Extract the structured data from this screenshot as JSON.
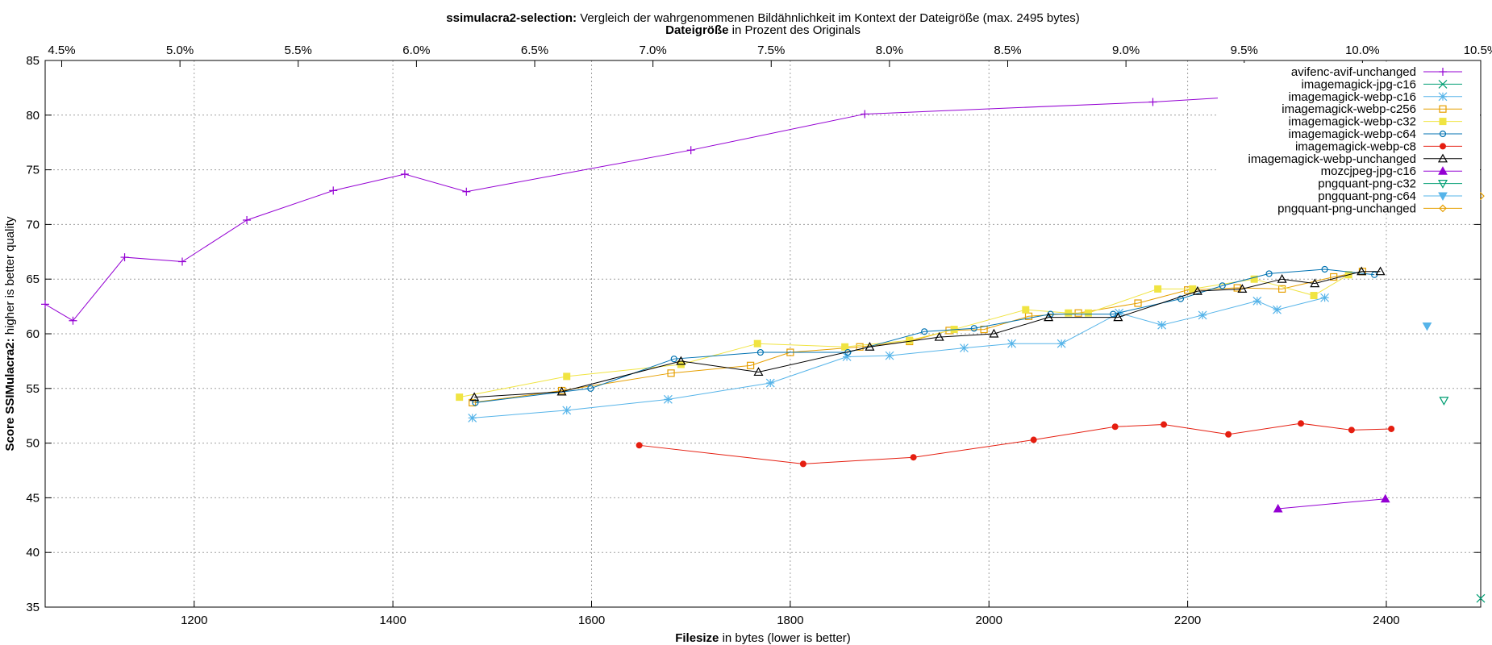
{
  "chart_data": {
    "type": "line",
    "title": {
      "bold": "ssimulacra2-selection:",
      "rest": " Vergleich der wahrgenommenen Bildähnlichkeit im Kontext der Dateigröße (max. 2495 bytes)"
    },
    "x2label": {
      "bold": "Dateigröße",
      "rest": " in Prozent des Originals"
    },
    "xlabel": {
      "bold": "Filesize",
      "rest": " in bytes (lower is better)"
    },
    "ylabel": {
      "bold": "Score SSIMulacra2:",
      "rest": " higher is better quality"
    },
    "xlim": [
      1050,
      2495
    ],
    "ylim": [
      35,
      85
    ],
    "x_ticks": [
      1200,
      1400,
      1600,
      1800,
      2000,
      2200,
      2400
    ],
    "y_ticks": [
      35,
      40,
      45,
      50,
      55,
      60,
      65,
      70,
      75,
      80,
      85
    ],
    "x2_ticks": [
      "4.5%",
      "5.0%",
      "5.5%",
      "6.0%",
      "6.5%",
      "7.0%",
      "7.5%",
      "8.0%",
      "8.5%",
      "9.0%",
      "9.5%",
      "10.0%",
      "10.5%"
    ],
    "x2_range": [
      4.43,
      10.5
    ],
    "grid": true,
    "legend_position": "top-right",
    "series": [
      {
        "name": "avifenc-avif-unchanged",
        "color": "#9400d3",
        "marker": "plus",
        "points": [
          [
            1050,
            62.7
          ],
          [
            1078,
            61.2
          ],
          [
            1130,
            67.0
          ],
          [
            1188,
            66.6
          ],
          [
            1253,
            70.4
          ],
          [
            1340,
            73.1
          ],
          [
            1412,
            74.6
          ],
          [
            1474,
            73.0
          ],
          [
            1700,
            76.8
          ],
          [
            1875,
            80.1
          ],
          [
            2165,
            81.2
          ],
          [
            2400,
            82.5
          ]
        ]
      },
      {
        "name": "imagemagick-jpg-c16",
        "color": "#009e73",
        "marker": "cross",
        "points": [
          [
            2495,
            35.8
          ]
        ]
      },
      {
        "name": "imagemagick-webp-c16",
        "color": "#56b4e9",
        "marker": "asterisk",
        "points": [
          [
            1480,
            52.3
          ],
          [
            1575,
            53.0
          ],
          [
            1677,
            54.0
          ],
          [
            1780,
            55.5
          ],
          [
            1857,
            57.9
          ],
          [
            1900,
            58.0
          ],
          [
            1975,
            58.7
          ],
          [
            2023,
            59.1
          ],
          [
            2073,
            59.1
          ],
          [
            2131,
            61.9
          ],
          [
            2174,
            60.8
          ],
          [
            2215,
            61.7
          ],
          [
            2270,
            63.0
          ],
          [
            2290,
            62.2
          ],
          [
            2338,
            63.3
          ]
        ]
      },
      {
        "name": "imagemagick-webp-c256",
        "color": "#e69f00",
        "marker": "square-open",
        "points": [
          [
            1480,
            53.7
          ],
          [
            1570,
            54.8
          ],
          [
            1680,
            56.4
          ],
          [
            1760,
            57.1
          ],
          [
            1800,
            58.3
          ],
          [
            1870,
            58.8
          ],
          [
            1920,
            59.3
          ],
          [
            1960,
            60.3
          ],
          [
            1995,
            60.4
          ],
          [
            2040,
            61.6
          ],
          [
            2090,
            61.9
          ],
          [
            2150,
            62.8
          ],
          [
            2200,
            64.0
          ],
          [
            2250,
            64.2
          ],
          [
            2295,
            64.1
          ],
          [
            2347,
            65.2
          ],
          [
            2376,
            65.7
          ]
        ]
      },
      {
        "name": "imagemagick-webp-c32",
        "color": "#f0e442",
        "marker": "square-filled",
        "points": [
          [
            1467,
            54.2
          ],
          [
            1575,
            56.1
          ],
          [
            1690,
            57.2
          ],
          [
            1767,
            59.1
          ],
          [
            1855,
            58.8
          ],
          [
            1920,
            59.4
          ],
          [
            1965,
            60.4
          ],
          [
            2037,
            62.2
          ],
          [
            2080,
            61.9
          ],
          [
            2100,
            61.9
          ],
          [
            2170,
            64.1
          ],
          [
            2205,
            64.1
          ],
          [
            2267,
            65.0
          ],
          [
            2327,
            63.5
          ],
          [
            2362,
            65.4
          ]
        ]
      },
      {
        "name": "imagemagick-webp-c64",
        "color": "#0072b2",
        "marker": "circle-open",
        "points": [
          [
            1483,
            53.7
          ],
          [
            1599,
            55.0
          ],
          [
            1683,
            57.7
          ],
          [
            1770,
            58.3
          ],
          [
            1858,
            58.3
          ],
          [
            1935,
            60.2
          ],
          [
            1985,
            60.5
          ],
          [
            2062,
            61.8
          ],
          [
            2125,
            61.8
          ],
          [
            2193,
            63.2
          ],
          [
            2235,
            64.4
          ],
          [
            2282,
            65.5
          ],
          [
            2338,
            65.9
          ],
          [
            2388,
            65.4
          ]
        ]
      },
      {
        "name": "imagemagick-webp-c8",
        "color": "#e51e10",
        "marker": "circle-filled",
        "points": [
          [
            1648,
            49.8
          ],
          [
            1813,
            48.1
          ],
          [
            1924,
            48.7
          ],
          [
            2045,
            50.3
          ],
          [
            2127,
            51.5
          ],
          [
            2176,
            51.7
          ],
          [
            2241,
            50.8
          ],
          [
            2314,
            51.8
          ],
          [
            2365,
            51.2
          ],
          [
            2405,
            51.3
          ]
        ]
      },
      {
        "name": "imagemagick-webp-unchanged",
        "color": "#000000",
        "marker": "triangle-open",
        "points": [
          [
            1482,
            54.2
          ],
          [
            1570,
            54.7
          ],
          [
            1690,
            57.5
          ],
          [
            1768,
            56.5
          ],
          [
            1880,
            58.8
          ],
          [
            1950,
            59.7
          ],
          [
            2005,
            60.0
          ],
          [
            2060,
            61.5
          ],
          [
            2130,
            61.5
          ],
          [
            2210,
            63.9
          ],
          [
            2255,
            64.1
          ],
          [
            2295,
            65.0
          ],
          [
            2328,
            64.6
          ],
          [
            2375,
            65.7
          ],
          [
            2394,
            65.7
          ]
        ]
      },
      {
        "name": "mozcjpeg-jpg-c16",
        "color": "#9400d3",
        "marker": "triangle-filled",
        "points": [
          [
            2291,
            44.0
          ],
          [
            2399,
            44.9
          ]
        ]
      },
      {
        "name": "pngquant-png-c32",
        "color": "#009e73",
        "marker": "triangle-down-open",
        "points": [
          [
            2458,
            53.9
          ]
        ]
      },
      {
        "name": "pngquant-png-c64",
        "color": "#56b4e9",
        "marker": "triangle-down-filled",
        "points": [
          [
            2441,
            60.7
          ]
        ]
      },
      {
        "name": "pngquant-png-unchanged",
        "color": "#e69f00",
        "marker": "diamond-open",
        "points": [
          [
            2462,
            73.9
          ],
          [
            2495,
            72.6
          ]
        ]
      }
    ]
  }
}
